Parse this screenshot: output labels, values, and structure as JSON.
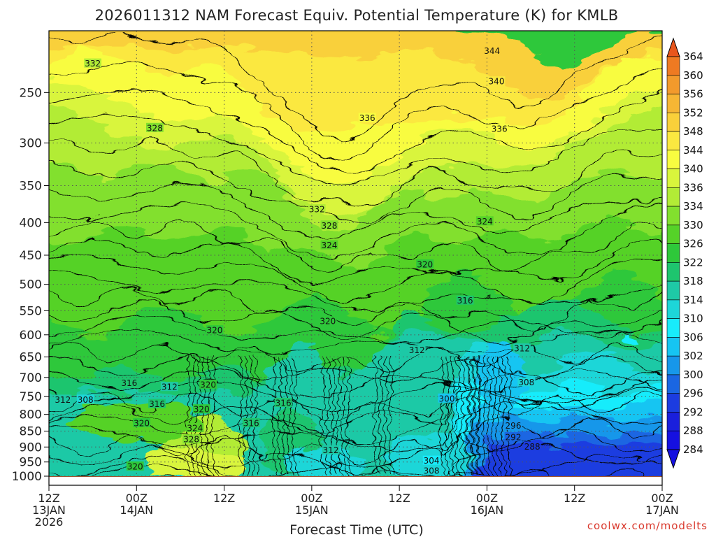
{
  "chart_data": {
    "type": "heatmap",
    "title": "2026011312 NAM Forecast Equiv. Potential Temperature (K) for KMLB",
    "xlabel": "Forecast Time (UTC)",
    "ylabel": "",
    "credit": "coolwx.com/modelts",
    "y_axis": {
      "scale": "log-pressure",
      "inverted": true,
      "range": [
        1000,
        200
      ],
      "ticks": [
        250,
        300,
        350,
        400,
        450,
        500,
        550,
        600,
        650,
        700,
        750,
        800,
        850,
        900,
        950,
        1000
      ]
    },
    "x_axis": {
      "range_hours": [
        0,
        84
      ],
      "ticks": [
        {
          "h": 0,
          "lines": [
            "12Z",
            "13JAN",
            "2026"
          ]
        },
        {
          "h": 12,
          "lines": [
            "00Z",
            "14JAN"
          ]
        },
        {
          "h": 24,
          "lines": [
            "12Z"
          ]
        },
        {
          "h": 36,
          "lines": [
            "00Z",
            "15JAN"
          ]
        },
        {
          "h": 48,
          "lines": [
            "12Z"
          ]
        },
        {
          "h": 60,
          "lines": [
            "00Z",
            "16JAN"
          ]
        },
        {
          "h": 72,
          "lines": [
            "12Z"
          ]
        },
        {
          "h": 84,
          "lines": [
            "00Z",
            "17JAN"
          ]
        }
      ]
    },
    "grid": true,
    "colorbar": {
      "placement": "right",
      "levels": [
        364,
        360,
        356,
        352,
        348,
        344,
        340,
        336,
        334,
        330,
        326,
        322,
        318,
        314,
        310,
        306,
        302,
        300,
        296,
        292,
        288,
        284
      ],
      "colors": [
        "#e8561c",
        "#ee7a22",
        "#f29a2c",
        "#f6b634",
        "#f9d03a",
        "#fbe840",
        "#f8fc40",
        "#d9f53c",
        "#b2ec36",
        "#82e02e",
        "#55d228",
        "#2ec83a",
        "#1ec56e",
        "#1ec9a6",
        "#1dd6d8",
        "#18ecfb",
        "#16c5f2",
        "#1797ea",
        "#1a66e2",
        "#1c3ce0",
        "#1a1fdc",
        "#1510e0"
      ]
    },
    "contour_labels": [
      {
        "text": "344",
        "h": 60.7,
        "p": 215
      },
      {
        "text": "340",
        "h": 61.3,
        "p": 240
      },
      {
        "text": "336",
        "h": 43.6,
        "p": 274
      },
      {
        "text": "336",
        "h": 61.7,
        "p": 285
      },
      {
        "text": "332",
        "h": 6.0,
        "p": 225
      },
      {
        "text": "328",
        "h": 14.5,
        "p": 284
      },
      {
        "text": "332",
        "h": 36.7,
        "p": 381
      },
      {
        "text": "328",
        "h": 38.4,
        "p": 404
      },
      {
        "text": "324",
        "h": 38.4,
        "p": 434
      },
      {
        "text": "324",
        "h": 59.7,
        "p": 398
      },
      {
        "text": "320",
        "h": 51.5,
        "p": 465
      },
      {
        "text": "316",
        "h": 57.0,
        "p": 530
      },
      {
        "text": "320",
        "h": 38.2,
        "p": 571
      },
      {
        "text": "320",
        "h": 22.7,
        "p": 590
      },
      {
        "text": "312",
        "h": 50.4,
        "p": 634
      },
      {
        "text": "312",
        "h": 64.8,
        "p": 630
      },
      {
        "text": "308",
        "h": 65.4,
        "p": 712
      },
      {
        "text": "300",
        "h": 54.5,
        "p": 755
      },
      {
        "text": "296",
        "h": 63.6,
        "p": 833
      },
      {
        "text": "292",
        "h": 63.6,
        "p": 868
      },
      {
        "text": "288",
        "h": 66.2,
        "p": 898
      },
      {
        "text": "316",
        "h": 11.0,
        "p": 714
      },
      {
        "text": "312",
        "h": 16.5,
        "p": 724
      },
      {
        "text": "320",
        "h": 21.8,
        "p": 718
      },
      {
        "text": "316",
        "h": 14.8,
        "p": 770
      },
      {
        "text": "320",
        "h": 12.7,
        "p": 825
      },
      {
        "text": "320",
        "h": 20.9,
        "p": 785
      },
      {
        "text": "316",
        "h": 27.7,
        "p": 825
      },
      {
        "text": "316",
        "h": 32.1,
        "p": 767
      },
      {
        "text": "324",
        "h": 20.0,
        "p": 840
      },
      {
        "text": "328",
        "h": 19.5,
        "p": 875
      },
      {
        "text": "312",
        "h": 38.6,
        "p": 910
      },
      {
        "text": "304",
        "h": 52.4,
        "p": 945
      },
      {
        "text": "308",
        "h": 52.4,
        "p": 980
      },
      {
        "text": "320",
        "h": 11.8,
        "p": 965
      },
      {
        "text": "308",
        "h": 5.0,
        "p": 758
      },
      {
        "text": "312",
        "h": 1.9,
        "p": 758
      }
    ]
  }
}
